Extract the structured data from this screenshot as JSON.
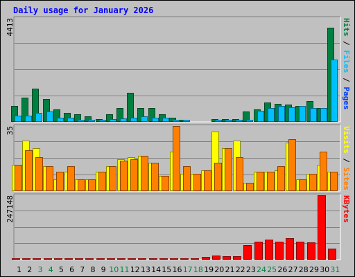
{
  "chart_data": [
    {
      "type": "bar",
      "title": "Daily usage for January 2026",
      "categories": [
        "1",
        "2",
        "3",
        "4",
        "5",
        "6",
        "7",
        "8",
        "9",
        "10",
        "11",
        "12",
        "13",
        "14",
        "15",
        "16",
        "17",
        "18",
        "19",
        "20",
        "21",
        "22",
        "23",
        "24",
        "25",
        "26",
        "27",
        "28",
        "29",
        "30",
        "31"
      ],
      "weekend_days": [
        "3",
        "4",
        "10",
        "11",
        "17",
        "18",
        "24",
        "25",
        "31"
      ],
      "ymax_label": "4413",
      "ylim": [
        0,
        4413
      ],
      "axis_legend": [
        "Pages",
        "Files",
        "Hits"
      ],
      "series": [
        {
          "name": "Hits",
          "color": "#008040",
          "values": [
            650,
            1000,
            1400,
            950,
            500,
            350,
            300,
            200,
            100,
            300,
            550,
            1200,
            550,
            550,
            300,
            150,
            50,
            0,
            0,
            100,
            80,
            80,
            400,
            500,
            800,
            750,
            700,
            650,
            850,
            550,
            4000
          ]
        },
        {
          "name": "Files",
          "color": "#00c0ff",
          "values": [
            250,
            250,
            350,
            400,
            150,
            150,
            50,
            50,
            50,
            80,
            130,
            150,
            200,
            150,
            150,
            50,
            50,
            0,
            0,
            50,
            50,
            50,
            50,
            450,
            550,
            650,
            600,
            650,
            550,
            550,
            2650
          ]
        },
        {
          "name": "Pages",
          "color": "#0040ff",
          "values": [
            0,
            0,
            0,
            0,
            0,
            0,
            0,
            0,
            0,
            0,
            0,
            0,
            0,
            0,
            0,
            0,
            0,
            0,
            0,
            0,
            0,
            0,
            0,
            0,
            0,
            0,
            0,
            0,
            0,
            0,
            0
          ]
        }
      ]
    },
    {
      "type": "bar",
      "ymax_label": "35",
      "ylim": [
        0,
        35
      ],
      "axis_legend": [
        "Sites",
        "Visits"
      ],
      "series": [
        {
          "name": "Visits",
          "color": "#ffff00",
          "values": [
            14,
            27,
            23,
            13,
            6,
            10,
            6,
            6,
            10,
            13,
            17,
            18,
            19,
            15,
            8,
            21,
            9,
            9,
            11,
            32,
            23,
            27,
            4,
            10,
            10,
            11,
            26,
            6,
            9,
            14,
            10
          ]
        },
        {
          "name": "Sites",
          "color": "#ff8000",
          "values": [
            14,
            22,
            18,
            13,
            10,
            13,
            6,
            6,
            10,
            13,
            16,
            17,
            19,
            15,
            8,
            35,
            13,
            9,
            11,
            15,
            23,
            18,
            4,
            10,
            10,
            13,
            28,
            6,
            9,
            21,
            10
          ]
        }
      ]
    },
    {
      "type": "bar",
      "ymax_label": "247148",
      "ylim": [
        0,
        247148
      ],
      "axis_legend": [
        "KBytes"
      ],
      "series": [
        {
          "name": "KBytes",
          "color": "#ff0000",
          "values": [
            3000,
            3000,
            3000,
            3000,
            3000,
            3000,
            3000,
            3000,
            3000,
            3000,
            3000,
            3000,
            3000,
            3000,
            3000,
            3000,
            3000,
            3000,
            8000,
            14000,
            11000,
            10000,
            55000,
            68000,
            75000,
            68000,
            80000,
            68000,
            65000,
            247148,
            40000
          ]
        }
      ]
    }
  ]
}
